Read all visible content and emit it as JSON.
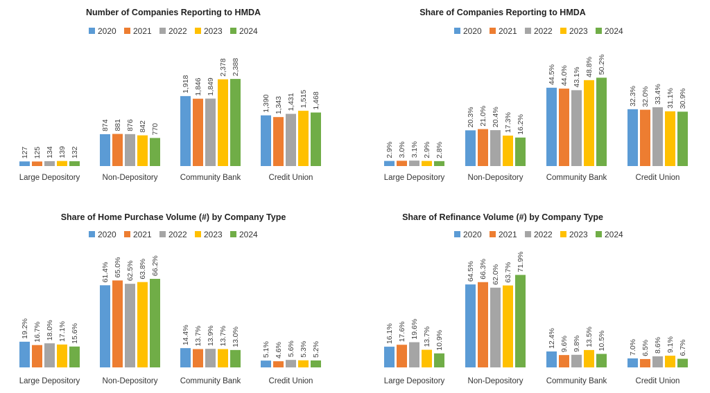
{
  "chart_data": [
    {
      "type": "bar",
      "title": "Number of Companies Reporting to HMDA",
      "categories": [
        "Large Depository",
        "Non-Depository",
        "Community Bank",
        "Credit Union"
      ],
      "series": [
        {
          "name": "2020",
          "color": "#5B9BD5",
          "values": [
            127,
            874,
            1918,
            1390
          ],
          "labels": [
            "127",
            "874",
            "1,918",
            "1,390"
          ]
        },
        {
          "name": "2021",
          "color": "#ED7D31",
          "values": [
            125,
            881,
            1846,
            1343
          ],
          "labels": [
            "125",
            "881",
            "1,846",
            "1,343"
          ]
        },
        {
          "name": "2022",
          "color": "#A5A5A5",
          "values": [
            134,
            876,
            1849,
            1431
          ],
          "labels": [
            "134",
            "876",
            "1,849",
            "1,431"
          ]
        },
        {
          "name": "2023",
          "color": "#FFC000",
          "values": [
            139,
            842,
            2378,
            1515
          ],
          "labels": [
            "139",
            "842",
            "2,378",
            "1,515"
          ]
        },
        {
          "name": "2024",
          "color": "#70AD47",
          "values": [
            132,
            770,
            2388,
            1468
          ],
          "labels": [
            "132",
            "770",
            "2,388",
            "1,468"
          ]
        }
      ],
      "ylim": [
        0,
        2750
      ],
      "legend": "top",
      "grid": false
    },
    {
      "type": "bar",
      "title": "Share of Companies Reporting to HMDA",
      "categories": [
        "Large Depository",
        "Non-Depository",
        "Community Bank",
        "Credit Union"
      ],
      "series": [
        {
          "name": "2020",
          "color": "#5B9BD5",
          "values": [
            2.9,
            20.3,
            44.5,
            32.3
          ],
          "labels": [
            "2.9%",
            "20.3%",
            "44.5%",
            "32.3%"
          ]
        },
        {
          "name": "2021",
          "color": "#ED7D31",
          "values": [
            3.0,
            21.0,
            44.0,
            32.0
          ],
          "labels": [
            "3.0%",
            "21.0%",
            "44.0%",
            "32.0%"
          ]
        },
        {
          "name": "2022",
          "color": "#A5A5A5",
          "values": [
            3.1,
            20.4,
            43.1,
            33.4
          ],
          "labels": [
            "3.1%",
            "20.4%",
            "43.1%",
            "33.4%"
          ]
        },
        {
          "name": "2023",
          "color": "#FFC000",
          "values": [
            2.9,
            17.3,
            48.8,
            31.1
          ],
          "labels": [
            "2.9%",
            "17.3%",
            "48.8%",
            "31.1%"
          ]
        },
        {
          "name": "2024",
          "color": "#70AD47",
          "values": [
            2.8,
            16.2,
            50.2,
            30.9
          ],
          "labels": [
            "2.8%",
            "16.2%",
            "50.2%",
            "30.9%"
          ]
        }
      ],
      "ylim": [
        0,
        57
      ],
      "legend": "top",
      "grid": false
    },
    {
      "type": "bar",
      "title": "Share of Home Purchase Volume (#) by Company Type",
      "categories": [
        "Large Depository",
        "Non-Depository",
        "Community Bank",
        "Credit Union"
      ],
      "series": [
        {
          "name": "2020",
          "color": "#5B9BD5",
          "values": [
            19.2,
            61.4,
            14.4,
            5.1
          ],
          "labels": [
            "19.2%",
            "61.4%",
            "14.4%",
            "5.1%"
          ]
        },
        {
          "name": "2021",
          "color": "#ED7D31",
          "values": [
            16.7,
            65.0,
            13.7,
            4.6
          ],
          "labels": [
            "16.7%",
            "65.0%",
            "13.7%",
            "4.6%"
          ]
        },
        {
          "name": "2022",
          "color": "#A5A5A5",
          "values": [
            18.0,
            62.5,
            13.9,
            5.6
          ],
          "labels": [
            "18.0%",
            "62.5%",
            "13.9%",
            "5.6%"
          ]
        },
        {
          "name": "2023",
          "color": "#FFC000",
          "values": [
            17.1,
            63.8,
            13.7,
            5.3
          ],
          "labels": [
            "17.1%",
            "63.8%",
            "13.7%",
            "5.3%"
          ]
        },
        {
          "name": "2024",
          "color": "#70AD47",
          "values": [
            15.6,
            66.2,
            13.0,
            5.2
          ],
          "labels": [
            "15.6%",
            "66.2%",
            "13.0%",
            "5.2%"
          ]
        }
      ],
      "ylim": [
        0,
        75
      ],
      "legend": "top",
      "grid": false
    },
    {
      "type": "bar",
      "title": "Share of Refinance Volume (#) by Company Type",
      "categories": [
        "Large Depository",
        "Non-Depository",
        "Community Bank",
        "Credit Union"
      ],
      "series": [
        {
          "name": "2020",
          "color": "#5B9BD5",
          "values": [
            16.1,
            64.5,
            12.4,
            7.0
          ],
          "labels": [
            "16.1%",
            "64.5%",
            "12.4%",
            "7.0%"
          ]
        },
        {
          "name": "2021",
          "color": "#ED7D31",
          "values": [
            17.6,
            66.3,
            9.6,
            6.5
          ],
          "labels": [
            "17.6%",
            "66.3%",
            "9.6%",
            "6.5%"
          ]
        },
        {
          "name": "2022",
          "color": "#A5A5A5",
          "values": [
            19.6,
            62.0,
            9.8,
            8.6
          ],
          "labels": [
            "19.6%",
            "62.0%",
            "9.8%",
            "8.6%"
          ]
        },
        {
          "name": "2023",
          "color": "#FFC000",
          "values": [
            13.7,
            63.7,
            13.5,
            9.1
          ],
          "labels": [
            "13.7%",
            "63.7%",
            "13.5%",
            "9.1%"
          ]
        },
        {
          "name": "2024",
          "color": "#70AD47",
          "values": [
            10.9,
            71.9,
            10.5,
            6.7
          ],
          "labels": [
            "10.9%",
            "71.9%",
            "10.5%",
            "6.7%"
          ]
        }
      ],
      "ylim": [
        0,
        78
      ],
      "legend": "top",
      "grid": false
    }
  ]
}
